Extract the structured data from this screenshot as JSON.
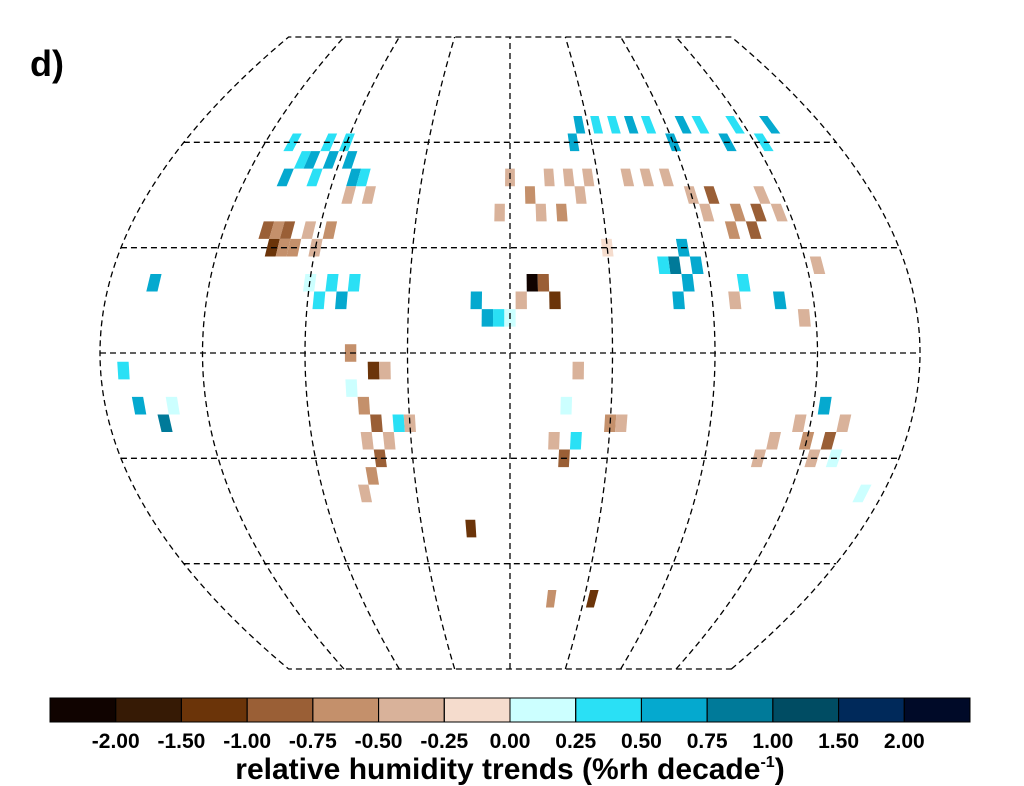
{
  "chart_data": {
    "type": "map",
    "panel_label": "d)",
    "title": "relative humidity trends (%rh decade",
    "title_superscript": "-1",
    "title_end": ")",
    "lat_lines": [
      -60,
      -30,
      0,
      30,
      60
    ],
    "lon_lines": [
      -135,
      -90,
      -45,
      0,
      45,
      90,
      135
    ],
    "colorbar": {
      "colors": [
        "#100300",
        "#361a05",
        "#6b3409",
        "#9a5f36",
        "#c4906b",
        "#d9b29a",
        "#f5dccd",
        "#ccffff",
        "#2ae0f5",
        "#05a9cf",
        "#007a99",
        "#004c63",
        "#00295a",
        "#000a28"
      ],
      "ticks": [
        {
          "value": -2,
          "label": "-2.00"
        },
        {
          "value": -1.5,
          "label": "-1.50"
        },
        {
          "value": -1,
          "label": "-1.00"
        },
        {
          "value": -0.75,
          "label": "-0.75"
        },
        {
          "value": -0.5,
          "label": "-0.50"
        },
        {
          "value": -0.25,
          "label": "-0.25"
        },
        {
          "value": 0,
          "label": "0.00"
        },
        {
          "value": 0.25,
          "label": "0.25"
        },
        {
          "value": 0.5,
          "label": "0.50"
        },
        {
          "value": 0.75,
          "label": "0.75"
        },
        {
          "value": 1,
          "label": "1.00"
        },
        {
          "value": 1.5,
          "label": "1.50"
        },
        {
          "value": 2,
          "label": "2.00"
        }
      ]
    },
    "cells": [
      [
        -115,
        35,
        -0.8
      ],
      [
        -110,
        35,
        -0.6
      ],
      [
        -105,
        35,
        -0.8
      ],
      [
        -100,
        30,
        -0.6
      ],
      [
        -110,
        30,
        -1.2
      ],
      [
        -105,
        30,
        -0.6
      ],
      [
        -95,
        35,
        -0.4
      ],
      [
        -90,
        30,
        -0.3
      ],
      [
        -85,
        35,
        -0.6
      ],
      [
        -110,
        55,
        0.4
      ],
      [
        -105,
        55,
        0.6
      ],
      [
        -100,
        60,
        0.4
      ],
      [
        -95,
        55,
        0.6
      ],
      [
        -90,
        60,
        0.3
      ],
      [
        -85,
        55,
        0.5
      ],
      [
        -80,
        50,
        0.7
      ],
      [
        -75,
        50,
        0.4
      ],
      [
        -120,
        60,
        0.3
      ],
      [
        -100,
        50,
        0.3
      ],
      [
        -115,
        50,
        0.6
      ],
      [
        -70,
        45,
        -0.4
      ],
      [
        -80,
        45,
        -0.3
      ],
      [
        -85,
        15,
        0.4
      ],
      [
        -80,
        20,
        0.3
      ],
      [
        -75,
        15,
        0.5
      ],
      [
        -90,
        20,
        0.2
      ],
      [
        -70,
        20,
        0.3
      ],
      [
        -70,
        0,
        -0.6
      ],
      [
        -60,
        -5,
        -1.2
      ],
      [
        -55,
        -5,
        -0.5
      ],
      [
        -65,
        -15,
        -0.6
      ],
      [
        -60,
        -20,
        -0.8
      ],
      [
        -55,
        -25,
        -0.5
      ],
      [
        -65,
        -25,
        -0.3
      ],
      [
        -60,
        -30,
        -0.8
      ],
      [
        -65,
        -35,
        -0.6
      ],
      [
        -70,
        -40,
        -0.3
      ],
      [
        -50,
        -20,
        0.4
      ],
      [
        -45,
        -20,
        -0.3
      ],
      [
        -70,
        -10,
        0.2
      ],
      [
        10,
        45,
        -0.6
      ],
      [
        20,
        50,
        -0.4
      ],
      [
        30,
        50,
        -0.3
      ],
      [
        0,
        50,
        -0.3
      ],
      [
        -5,
        40,
        -0.5
      ],
      [
        15,
        40,
        -0.3
      ],
      [
        25,
        40,
        -0.6
      ],
      [
        35,
        45,
        -0.5
      ],
      [
        40,
        50,
        -0.4
      ],
      [
        10,
        20,
        -2.1
      ],
      [
        15,
        20,
        -0.8
      ],
      [
        20,
        15,
        -1.2
      ],
      [
        5,
        15,
        -0.3
      ],
      [
        -15,
        15,
        0.5
      ],
      [
        -10,
        10,
        0.6
      ],
      [
        -5,
        10,
        0.3
      ],
      [
        0,
        10,
        0.2
      ],
      [
        30,
        -5,
        -0.3
      ],
      [
        25,
        -15,
        0.2
      ],
      [
        20,
        -25,
        -0.5
      ],
      [
        30,
        -25,
        0.3
      ],
      [
        25,
        -30,
        -0.9
      ],
      [
        45,
        -20,
        -0.6
      ],
      [
        50,
        -20,
        -0.3
      ],
      [
        45,
        30,
        -0.2
      ],
      [
        40,
        65,
        0.6
      ],
      [
        50,
        65,
        0.4
      ],
      [
        60,
        65,
        0.3
      ],
      [
        70,
        65,
        0.5
      ],
      [
        80,
        65,
        0.4
      ],
      [
        90,
        60,
        0.6
      ],
      [
        100,
        65,
        0.5
      ],
      [
        110,
        65,
        0.3
      ],
      [
        120,
        60,
        0.6
      ],
      [
        130,
        65,
        0.4
      ],
      [
        140,
        60,
        0.3
      ],
      [
        150,
        65,
        0.5
      ],
      [
        35,
        60,
        0.7
      ],
      [
        60,
        50,
        -0.5
      ],
      [
        70,
        50,
        -0.4
      ],
      [
        80,
        50,
        -0.3
      ],
      [
        90,
        45,
        -0.5
      ],
      [
        100,
        45,
        -0.8
      ],
      [
        110,
        40,
        -0.7
      ],
      [
        120,
        40,
        -0.8
      ],
      [
        115,
        35,
        -1.0
      ],
      [
        105,
        35,
        -0.6
      ],
      [
        125,
        45,
        -0.5
      ],
      [
        130,
        40,
        -0.3
      ],
      [
        95,
        40,
        -0.4
      ],
      [
        75,
        25,
        0.8
      ],
      [
        80,
        20,
        0.7
      ],
      [
        75,
        15,
        0.6
      ],
      [
        80,
        30,
        0.5
      ],
      [
        70,
        25,
        0.3
      ],
      [
        85,
        25,
        0.6
      ],
      [
        100,
        15,
        -0.3
      ],
      [
        105,
        20,
        0.4
      ],
      [
        120,
        15,
        0.5
      ],
      [
        140,
        25,
        -0.3
      ],
      [
        130,
        10,
        -0.4
      ],
      [
        120,
        -25,
        -0.3
      ],
      [
        130,
        -20,
        -0.5
      ],
      [
        135,
        -25,
        -0.6
      ],
      [
        140,
        -30,
        -0.4
      ],
      [
        145,
        -25,
        -0.8
      ],
      [
        150,
        -30,
        0.2
      ],
      [
        115,
        -30,
        -0.3
      ],
      [
        150,
        -20,
        -0.5
      ],
      [
        140,
        -15,
        0.6
      ],
      [
        170,
        -40,
        0.2
      ],
      [
        -160,
        20,
        0.6
      ],
      [
        -165,
        -15,
        0.5
      ],
      [
        -155,
        -20,
        0.8
      ],
      [
        -150,
        -15,
        0.2
      ],
      [
        -170,
        -5,
        0.3
      ],
      [
        -20,
        -50,
        -1.2
      ],
      [
        50,
        -70,
        -1.2
      ],
      [
        25,
        -70,
        -0.6
      ]
    ]
  }
}
